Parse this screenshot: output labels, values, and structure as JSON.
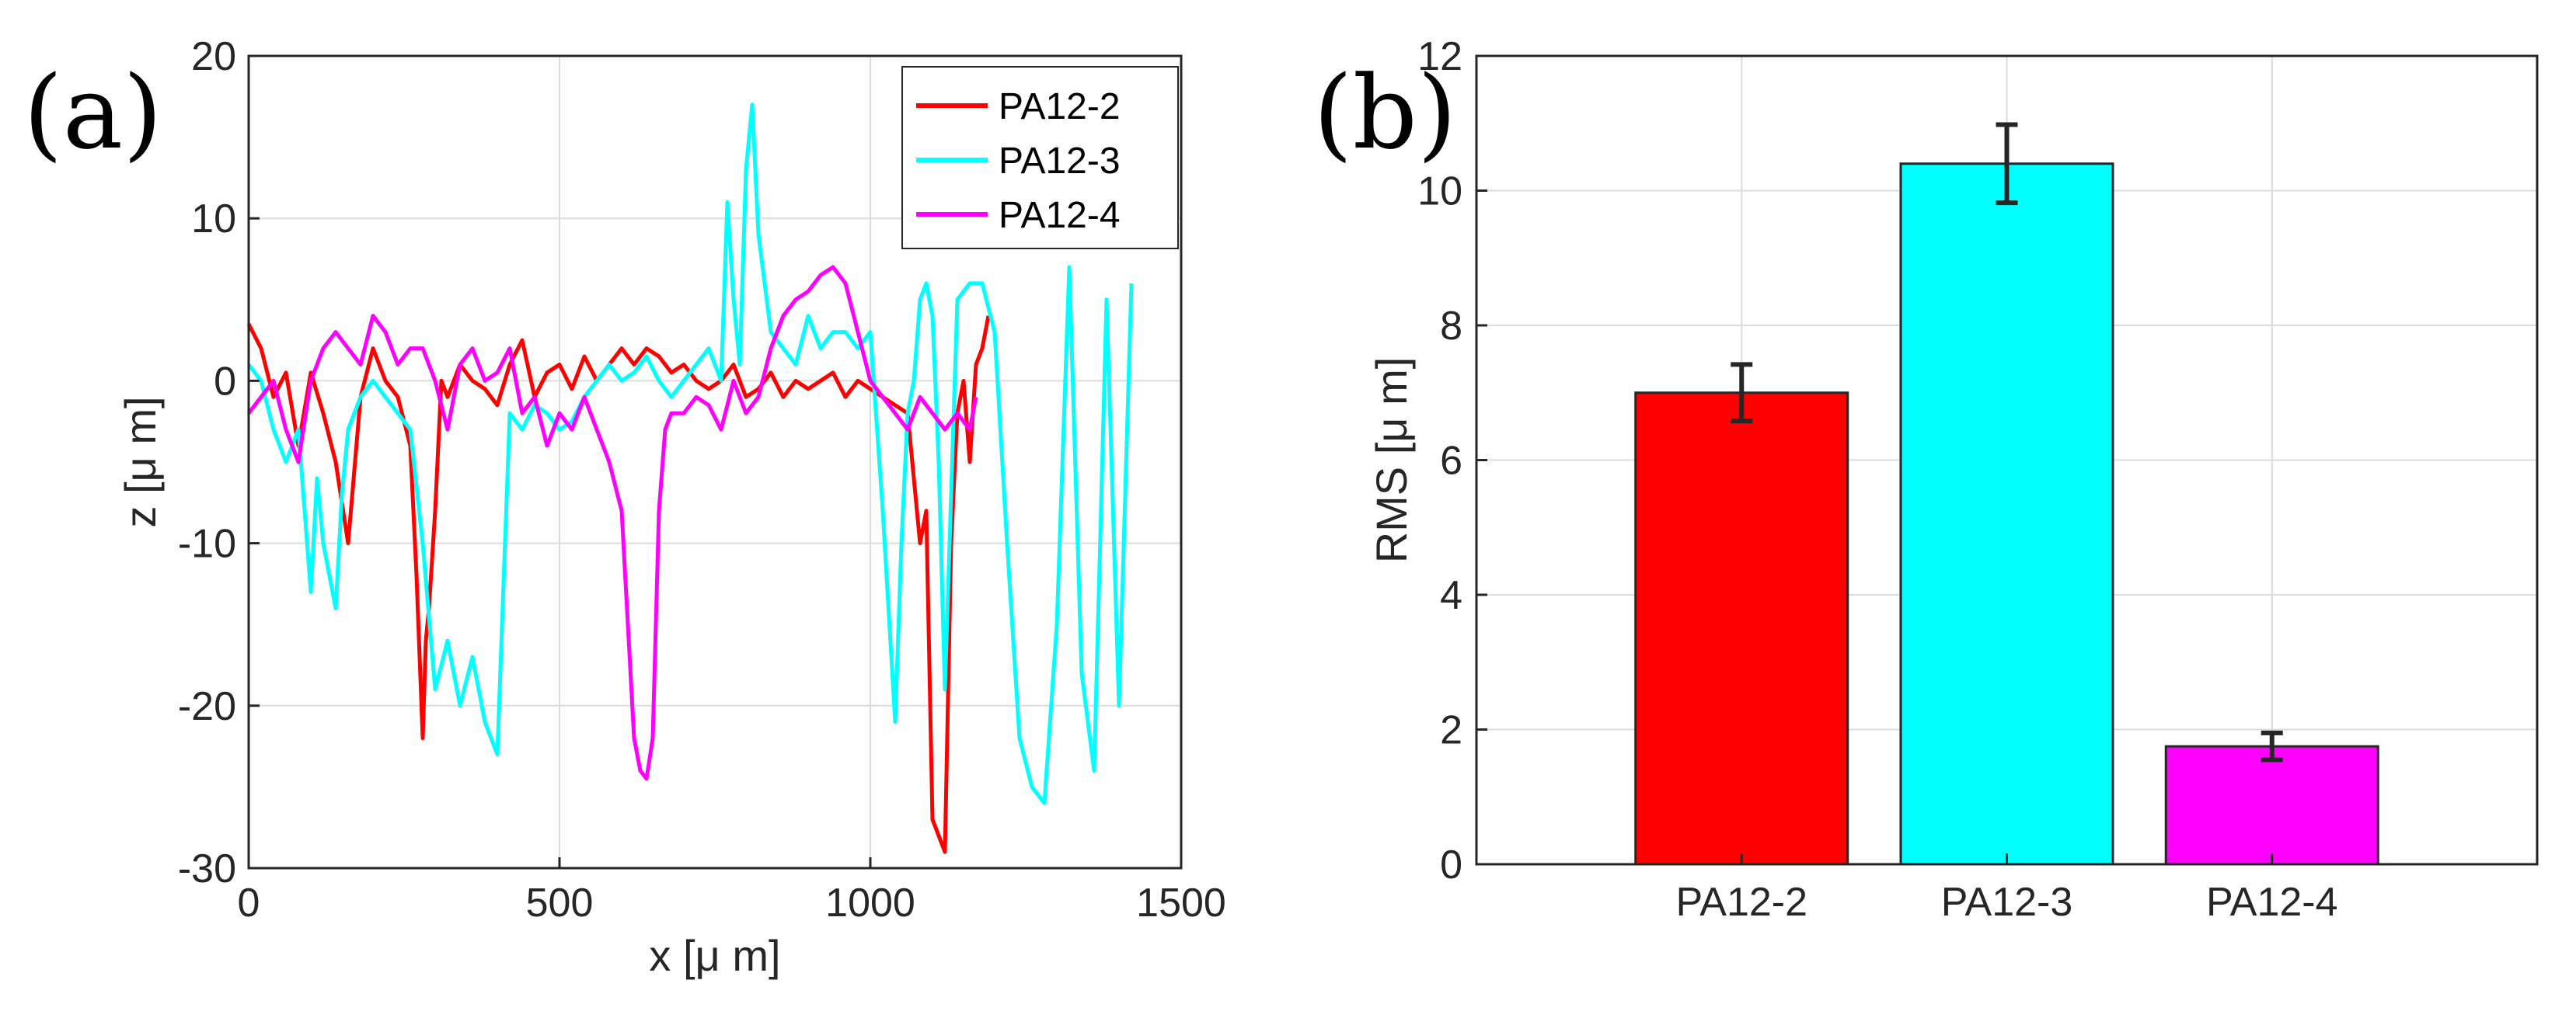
{
  "figure": {
    "panel_a_label": "(a)",
    "panel_b_label": "(b)"
  },
  "chart_data": [
    {
      "type": "line",
      "panel": "(a)",
      "title": "",
      "xlabel": "x [μ m]",
      "ylabel": "z [μ m]",
      "xlim": [
        0,
        1500
      ],
      "ylim": [
        -30,
        20
      ],
      "xticks": [
        "0",
        "500",
        "1000",
        "1500"
      ],
      "yticks": [
        "-30",
        "-20",
        "-10",
        "0",
        "10",
        "20"
      ],
      "grid": true,
      "legend_position": "top-right",
      "series": [
        {
          "name": "PA12-2",
          "color": "#ff0000",
          "x": [
            0,
            20,
            40,
            60,
            80,
            100,
            120,
            140,
            160,
            180,
            200,
            220,
            240,
            260,
            270,
            280,
            285,
            290,
            300,
            310,
            320,
            340,
            360,
            380,
            400,
            420,
            440,
            460,
            480,
            500,
            520,
            540,
            560,
            580,
            600,
            620,
            640,
            660,
            680,
            700,
            720,
            740,
            760,
            780,
            800,
            820,
            840,
            860,
            880,
            900,
            920,
            940,
            960,
            980,
            1000,
            1020,
            1040,
            1060,
            1080,
            1090,
            1100,
            1110,
            1120,
            1130,
            1140,
            1150,
            1160,
            1170,
            1180,
            1190
          ],
          "values": [
            3.5,
            2.0,
            -1.0,
            0.5,
            -4.0,
            0.5,
            -2.0,
            -5.0,
            -10.0,
            -1.0,
            2.0,
            0.0,
            -1.0,
            -4.0,
            -12.0,
            -22.0,
            -16.0,
            -14.0,
            -8.0,
            0.0,
            -1.0,
            1.0,
            0.0,
            -0.5,
            -1.5,
            1.0,
            2.5,
            -1.0,
            0.5,
            1.0,
            -0.5,
            1.5,
            0.0,
            1.0,
            2.0,
            1.0,
            2.0,
            1.5,
            0.5,
            1.0,
            0.0,
            -0.5,
            0.0,
            1.0,
            -1.0,
            -0.5,
            0.5,
            -1.0,
            0.0,
            -0.5,
            0.0,
            0.5,
            -1.0,
            0.0,
            -0.5,
            -1.0,
            -1.5,
            -2.0,
            -10.0,
            -8.0,
            -27.0,
            -28.0,
            -29.0,
            -10.0,
            -2.0,
            0.0,
            -5.0,
            1.0,
            2.0,
            4.0
          ]
        },
        {
          "name": "PA12-3",
          "color": "#00ffff",
          "x": [
            0,
            20,
            40,
            60,
            80,
            100,
            110,
            120,
            140,
            150,
            160,
            180,
            200,
            220,
            240,
            260,
            280,
            300,
            320,
            340,
            360,
            380,
            400,
            420,
            440,
            460,
            480,
            500,
            520,
            540,
            560,
            580,
            600,
            620,
            640,
            660,
            680,
            700,
            720,
            740,
            760,
            770,
            780,
            790,
            800,
            810,
            820,
            840,
            860,
            880,
            900,
            920,
            940,
            960,
            980,
            1000,
            1020,
            1040,
            1050,
            1060,
            1070,
            1080,
            1090,
            1100,
            1110,
            1120,
            1140,
            1160,
            1180,
            1200,
            1220,
            1240,
            1260,
            1280,
            1300,
            1320,
            1340,
            1360,
            1380,
            1400,
            1420
          ],
          "values": [
            1.0,
            0.0,
            -3.0,
            -5.0,
            -3.0,
            -13.0,
            -6.0,
            -10.0,
            -14.0,
            -7.0,
            -3.0,
            -1.0,
            0.0,
            -1.0,
            -2.0,
            -3.0,
            -10.0,
            -19.0,
            -16.0,
            -20.0,
            -17.0,
            -21.0,
            -23.0,
            -2.0,
            -3.0,
            -1.5,
            -2.0,
            -3.0,
            -2.5,
            -1.0,
            0.0,
            1.0,
            0.0,
            0.5,
            1.5,
            0.0,
            -1.0,
            0.0,
            1.0,
            2.0,
            0.0,
            11.0,
            5.0,
            1.0,
            13.0,
            17.0,
            9.0,
            3.0,
            2.0,
            1.0,
            4.0,
            2.0,
            3.0,
            3.0,
            2.0,
            3.0,
            -8.0,
            -21.0,
            -10.0,
            -2.0,
            0.0,
            5.0,
            6.0,
            4.0,
            -5.0,
            -19.0,
            5.0,
            6.0,
            6.0,
            3.0,
            -10.0,
            -22.0,
            -25.0,
            -26.0,
            -15.0,
            7.0,
            -18.0,
            -24.0,
            5.0,
            -20.0,
            6.0
          ]
        },
        {
          "name": "PA12-4",
          "color": "#ff00ff",
          "x": [
            0,
            20,
            40,
            60,
            80,
            100,
            120,
            140,
            160,
            180,
            200,
            220,
            240,
            260,
            280,
            300,
            320,
            340,
            360,
            380,
            400,
            420,
            440,
            460,
            480,
            500,
            520,
            540,
            560,
            580,
            600,
            610,
            620,
            630,
            640,
            650,
            660,
            670,
            680,
            700,
            720,
            740,
            760,
            780,
            800,
            820,
            840,
            860,
            880,
            900,
            920,
            940,
            960,
            980,
            1000,
            1020,
            1040,
            1060,
            1080,
            1100,
            1120,
            1140,
            1160,
            1170
          ],
          "values": [
            -2.0,
            -1.0,
            0.0,
            -3.0,
            -5.0,
            0.0,
            2.0,
            3.0,
            2.0,
            1.0,
            4.0,
            3.0,
            1.0,
            2.0,
            2.0,
            0.0,
            -3.0,
            1.0,
            2.0,
            0.0,
            0.5,
            2.0,
            -2.0,
            -1.0,
            -4.0,
            -2.0,
            -3.0,
            -1.0,
            -3.0,
            -5.0,
            -8.0,
            -15.0,
            -22.0,
            -24.0,
            -24.5,
            -22.0,
            -8.0,
            -3.0,
            -2.0,
            -2.0,
            -1.0,
            -1.5,
            -3.0,
            0.0,
            -2.0,
            -1.0,
            2.0,
            4.0,
            5.0,
            5.5,
            6.5,
            7.0,
            6.0,
            3.0,
            0.0,
            -1.0,
            -2.0,
            -3.0,
            -1.0,
            -2.0,
            -3.0,
            -2.0,
            -3.0,
            -1.0
          ]
        }
      ]
    },
    {
      "type": "bar",
      "panel": "(b)",
      "title": "",
      "xlabel": "",
      "ylabel": "RMS [μ m]",
      "ylim": [
        0,
        12
      ],
      "yticks": [
        "0",
        "2",
        "4",
        "6",
        "8",
        "10",
        "12"
      ],
      "grid": true,
      "categories": [
        "PA12-2",
        "PA12-3",
        "PA12-4"
      ],
      "values": [
        7.0,
        10.4,
        1.75
      ],
      "errors": [
        0.42,
        0.58,
        0.2
      ],
      "colors": [
        "#ff0000",
        "#00ffff",
        "#ff00ff"
      ]
    }
  ]
}
